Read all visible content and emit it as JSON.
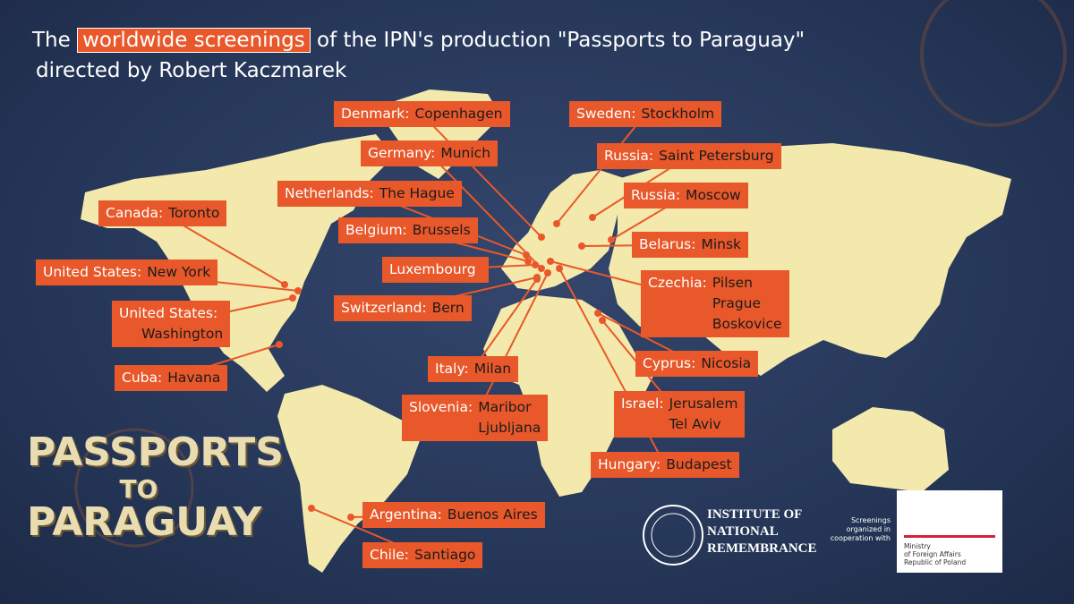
{
  "title": {
    "before": "The",
    "highlight": "worldwide screenings",
    "after": "of the IPN's production \"Passports to Paraguay\"",
    "line2": "directed by Robert Kaczmarek"
  },
  "labels": [
    {
      "country": "Denmark:",
      "cities": [
        "Copenhagen"
      ]
    },
    {
      "country": "Sweden:",
      "cities": [
        "Stockholm"
      ]
    },
    {
      "country": "Germany:",
      "cities": [
        "Munich"
      ]
    },
    {
      "country": "Russia:",
      "cities": [
        "Saint Petersburg"
      ]
    },
    {
      "country": "Netherlands:",
      "cities": [
        "The Hague"
      ]
    },
    {
      "country": "Russia:",
      "cities": [
        "Moscow"
      ]
    },
    {
      "country": "Canada:",
      "cities": [
        "Toronto"
      ]
    },
    {
      "country": "Belgium:",
      "cities": [
        "Brussels"
      ]
    },
    {
      "country": "Belarus:",
      "cities": [
        "Minsk"
      ]
    },
    {
      "country": "United States:",
      "cities": [
        "New York"
      ]
    },
    {
      "country": "Luxembourg",
      "cities": []
    },
    {
      "country": "Czechia:",
      "cities": [
        "Pilsen",
        "Prague",
        "Boskovice"
      ]
    },
    {
      "country": "Switzerland:",
      "cities": [
        "Bern"
      ]
    },
    {
      "country": "United States:",
      "cities": [
        "Washington"
      ]
    },
    {
      "country": "Cuba:",
      "cities": [
        "Havana"
      ]
    },
    {
      "country": "Italy:",
      "cities": [
        "Milan"
      ]
    },
    {
      "country": "Cyprus:",
      "cities": [
        "Nicosia"
      ]
    },
    {
      "country": "Slovenia:",
      "cities": [
        "Maribor",
        "Ljubljana"
      ]
    },
    {
      "country": "Israel:",
      "cities": [
        "Jerusalem",
        "Tel Aviv"
      ]
    },
    {
      "country": "Hungary:",
      "cities": [
        "Budapest"
      ]
    },
    {
      "country": "Argentina:",
      "cities": [
        "Buenos Aires"
      ]
    },
    {
      "country": "Chile:",
      "cities": [
        "Santiago"
      ]
    }
  ],
  "film_logo": [
    "PASSPORTS",
    "TO",
    "PARAGUAY"
  ],
  "institute": [
    "INSTITUTE OF",
    "NATIONAL",
    "REMEMBRANCE"
  ],
  "cooperation": "Screenings organized in cooperation with",
  "ministry": [
    "Ministry",
    "of Foreign Affairs",
    "Republic of Poland"
  ]
}
